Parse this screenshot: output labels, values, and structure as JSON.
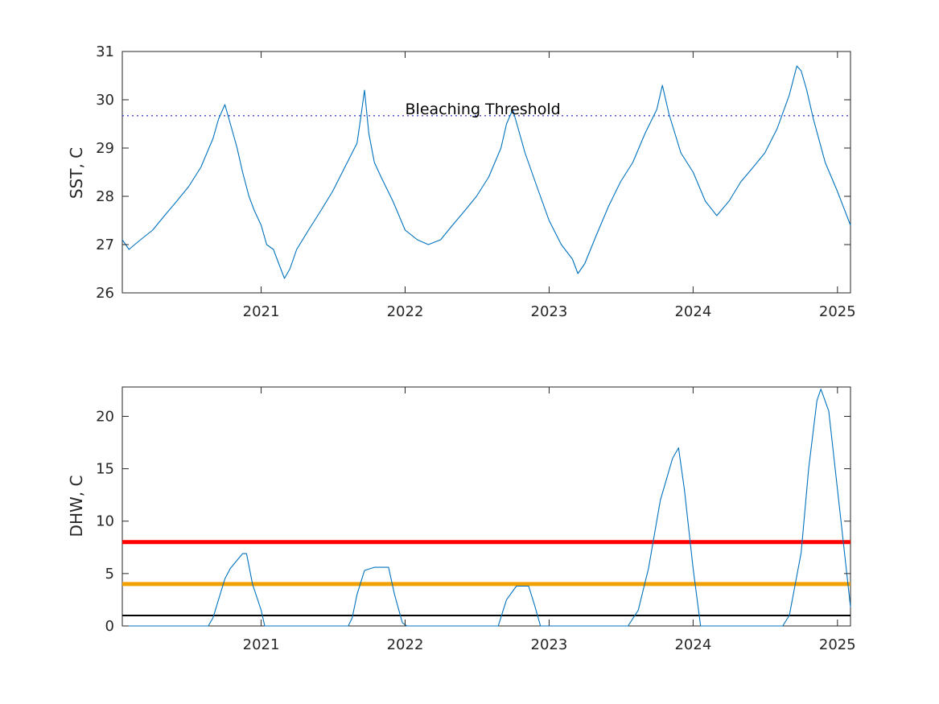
{
  "colors": {
    "series": "#0072BD",
    "threshold": "#4444cc",
    "alert_red": "#ff0000",
    "alert_orange": "#f0a000",
    "baseline": "#000000",
    "axes": "#262626"
  },
  "chart_data": [
    {
      "type": "line",
      "ylabel": "SST, C",
      "xlabel": "",
      "title": "",
      "xlim": [
        "2020-01-15",
        "2025-02-03"
      ],
      "ylim": [
        26,
        31
      ],
      "xticks": [
        "2021",
        "2022",
        "2023",
        "2024",
        "2025"
      ],
      "yticks": [
        "26",
        "27",
        "28",
        "29",
        "30",
        "31"
      ],
      "grid": false,
      "annotations": [
        {
          "text": "Bleaching Threshold",
          "x": "2022-01-01",
          "y": 29.8
        }
      ],
      "reference_lines": [
        {
          "name": "Bleaching Threshold",
          "y": 29.67,
          "style": "dotted"
        }
      ],
      "series": [
        {
          "x": [
            "2020-01-15",
            "2020-02-01",
            "2020-03-01",
            "2020-04-01",
            "2020-05-01",
            "2020-06-01",
            "2020-07-01",
            "2020-08-01",
            "2020-09-01",
            "2020-09-15",
            "2020-10-01",
            "2020-10-15",
            "2020-11-01",
            "2020-11-15",
            "2020-12-01",
            "2020-12-15",
            "2021-01-01",
            "2021-01-15",
            "2021-02-01",
            "2021-02-15",
            "2021-03-01",
            "2021-03-15",
            "2021-04-01",
            "2021-05-01",
            "2021-06-01",
            "2021-07-01",
            "2021-08-01",
            "2021-09-01",
            "2021-09-10",
            "2021-09-20",
            "2021-10-01",
            "2021-10-15",
            "2021-11-01",
            "2021-12-01",
            "2022-01-01",
            "2022-02-01",
            "2022-03-01",
            "2022-04-01",
            "2022-05-01",
            "2022-06-01",
            "2022-07-01",
            "2022-08-01",
            "2022-09-01",
            "2022-09-15",
            "2022-10-01",
            "2022-11-01",
            "2022-12-01",
            "2023-01-01",
            "2023-02-01",
            "2023-03-01",
            "2023-03-15",
            "2023-04-01",
            "2023-05-01",
            "2023-06-01",
            "2023-07-01",
            "2023-08-01",
            "2023-09-01",
            "2023-10-01",
            "2023-10-15",
            "2023-11-01",
            "2023-12-01",
            "2024-01-01",
            "2024-02-01",
            "2024-03-01",
            "2024-04-01",
            "2024-05-01",
            "2024-06-01",
            "2024-07-01",
            "2024-08-01",
            "2024-09-01",
            "2024-09-20",
            "2024-10-01",
            "2024-10-15",
            "2024-11-01",
            "2024-12-01",
            "2025-01-01",
            "2025-02-03"
          ],
          "values": [
            27.1,
            26.9,
            27.1,
            27.3,
            27.6,
            27.9,
            28.2,
            28.6,
            29.2,
            29.6,
            29.9,
            29.5,
            29.0,
            28.5,
            28.0,
            27.7,
            27.4,
            27.0,
            26.9,
            26.6,
            26.3,
            26.5,
            26.9,
            27.3,
            27.7,
            28.1,
            28.6,
            29.1,
            29.6,
            30.2,
            29.3,
            28.7,
            28.4,
            27.9,
            27.3,
            27.1,
            27.0,
            27.1,
            27.4,
            27.7,
            28.0,
            28.4,
            29.0,
            29.5,
            29.8,
            28.9,
            28.2,
            27.5,
            27.0,
            26.7,
            26.4,
            26.6,
            27.2,
            27.8,
            28.3,
            28.7,
            29.3,
            29.8,
            30.3,
            29.7,
            28.9,
            28.5,
            27.9,
            27.6,
            27.9,
            28.3,
            28.6,
            28.9,
            29.4,
            30.1,
            30.7,
            30.6,
            30.2,
            29.6,
            28.7,
            28.1,
            27.4
          ]
        }
      ]
    },
    {
      "type": "line",
      "ylabel": "DHW, C",
      "xlabel": "",
      "title": "",
      "xlim": [
        "2020-01-15",
        "2025-02-03"
      ],
      "ylim": [
        0,
        22.8
      ],
      "xticks": [
        "2021",
        "2022",
        "2023",
        "2024",
        "2025"
      ],
      "yticks": [
        "0",
        "5",
        "10",
        "15",
        "20"
      ],
      "grid": false,
      "reference_lines": [
        {
          "y": 8,
          "color": "red"
        },
        {
          "y": 4,
          "color": "orange"
        },
        {
          "y": 1,
          "color": "black"
        }
      ],
      "series": [
        {
          "x": [
            "2020-01-15",
            "2020-08-20",
            "2020-09-01",
            "2020-10-01",
            "2020-10-15",
            "2020-11-15",
            "2020-11-25",
            "2020-12-10",
            "2021-01-01",
            "2021-01-10",
            "2021-08-10",
            "2021-08-20",
            "2021-09-01",
            "2021-09-20",
            "2021-10-15",
            "2021-11-20",
            "2021-12-05",
            "2021-12-25",
            "2022-01-05",
            "2022-08-25",
            "2022-09-15",
            "2022-10-10",
            "2022-10-20",
            "2022-11-10",
            "2022-11-25",
            "2022-12-10",
            "2023-07-20",
            "2023-08-15",
            "2023-09-10",
            "2023-10-10",
            "2023-11-10",
            "2023-11-25",
            "2023-12-10",
            "2024-01-01",
            "2024-01-20",
            "2024-08-15",
            "2024-09-01",
            "2024-10-01",
            "2024-10-20",
            "2024-11-10",
            "2024-11-20",
            "2024-12-10",
            "2025-01-10",
            "2025-02-03"
          ],
          "values": [
            0,
            0,
            0.8,
            4.5,
            5.5,
            6.9,
            6.9,
            4.0,
            1.5,
            0,
            0,
            0.8,
            3.0,
            5.3,
            5.6,
            5.6,
            3.0,
            0.3,
            0,
            0,
            2.5,
            3.8,
            3.8,
            3.8,
            2.0,
            0,
            0,
            1.5,
            5.5,
            12.0,
            16.0,
            17.0,
            13.0,
            5.5,
            0,
            0,
            1.0,
            7.0,
            15.0,
            21.5,
            22.6,
            20.5,
            10.0,
            1.8
          ]
        }
      ]
    }
  ]
}
